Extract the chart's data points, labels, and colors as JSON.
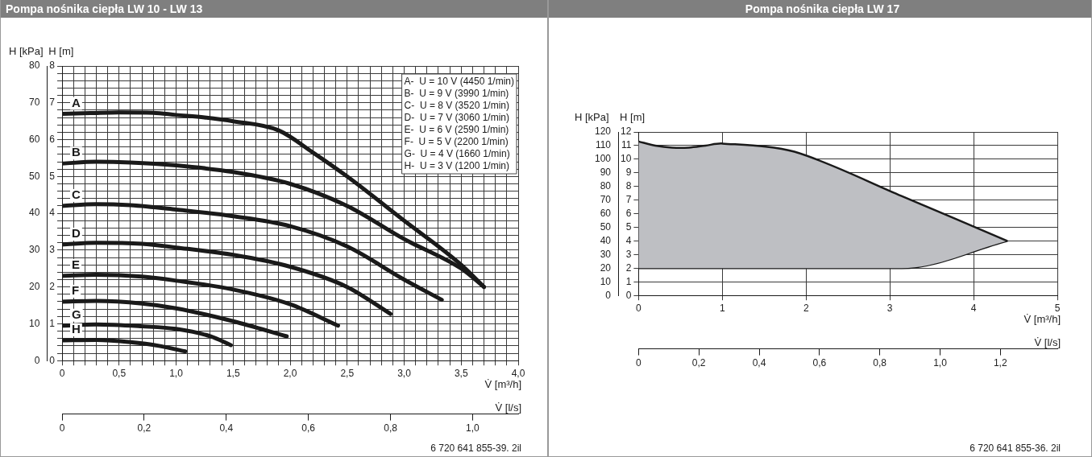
{
  "chart_data": [
    {
      "type": "line",
      "title": "Pompa nośnika ciepła LW 10 - LW 13",
      "xlabel": "V̇ [m³/h]",
      "x2label": "V̇ [l/s]",
      "ylabel": "H [m]",
      "y2label": "H [kPa]",
      "xlim": [
        0,
        4
      ],
      "xticks": [
        0,
        {
          "value": 0.1,
          "label": null
        },
        {
          "value": 0.2,
          "label": null
        },
        {
          "value": 0.3,
          "label": null
        },
        {
          "value": 0.4,
          "label": null
        },
        {
          "value": 0.5,
          "label": "0,5"
        },
        {
          "value": 0.6,
          "label": null
        },
        {
          "value": 0.7,
          "label": null
        },
        {
          "value": 0.8,
          "label": null
        },
        {
          "value": 0.9,
          "label": null
        },
        {
          "value": 1,
          "label": "1,0"
        },
        {
          "value": 1.1,
          "label": null
        },
        {
          "value": 1.2,
          "label": null
        },
        {
          "value": 1.3,
          "label": null
        },
        {
          "value": 1.4,
          "label": null
        },
        {
          "value": 1.5,
          "label": "1,5"
        },
        {
          "value": 1.6,
          "label": null
        },
        {
          "value": 1.7,
          "label": null
        },
        {
          "value": 1.8,
          "label": null
        },
        {
          "value": 1.9,
          "label": null
        },
        {
          "value": 2,
          "label": "2,0"
        },
        {
          "value": 2.1,
          "label": null
        },
        {
          "value": 2.2,
          "label": null
        },
        {
          "value": 2.3,
          "label": null
        },
        {
          "value": 2.4,
          "label": null
        },
        {
          "value": 2.5,
          "label": "2,5"
        },
        {
          "value": 2.6,
          "label": null
        },
        {
          "value": 2.7,
          "label": null
        },
        {
          "value": 2.8,
          "label": null
        },
        {
          "value": 2.9,
          "label": null
        },
        {
          "value": 3,
          "label": "3,0"
        },
        {
          "value": 3.1,
          "label": null
        },
        {
          "value": 3.2,
          "label": null
        },
        {
          "value": 3.3,
          "label": null
        },
        {
          "value": 3.4,
          "label": null
        },
        {
          "value": 3.5,
          "label": "3,5"
        },
        {
          "value": 3.6,
          "label": null
        },
        {
          "value": 3.7,
          "label": null
        },
        {
          "value": 3.8,
          "label": null
        },
        {
          "value": 3.9,
          "label": null
        },
        {
          "value": 4,
          "label": "4,0"
        }
      ],
      "ylim": [
        0,
        8
      ],
      "yticks": [
        0,
        {
          "value": 0.2,
          "label": null
        },
        {
          "value": 0.4,
          "label": null
        },
        {
          "value": 0.6,
          "label": null
        },
        {
          "value": 0.8,
          "label": null
        },
        1,
        {
          "value": 1.2,
          "label": null
        },
        {
          "value": 1.4,
          "label": null
        },
        {
          "value": 1.6,
          "label": null
        },
        {
          "value": 1.8,
          "label": null
        },
        2,
        {
          "value": 2.2,
          "label": null
        },
        {
          "value": 2.4,
          "label": null
        },
        {
          "value": 2.6,
          "label": null
        },
        {
          "value": 2.8,
          "label": null
        },
        3,
        {
          "value": 3.2,
          "label": null
        },
        {
          "value": 3.4,
          "label": null
        },
        {
          "value": 3.6,
          "label": null
        },
        {
          "value": 3.8,
          "label": null
        },
        4,
        {
          "value": 4.2,
          "label": null
        },
        {
          "value": 4.4,
          "label": null
        },
        {
          "value": 4.6,
          "label": null
        },
        {
          "value": 4.8,
          "label": null
        },
        5,
        {
          "value": 5.2,
          "label": null
        },
        {
          "value": 5.4,
          "label": null
        },
        {
          "value": 5.6,
          "label": null
        },
        {
          "value": 5.8,
          "label": null
        },
        6,
        {
          "value": 6.2,
          "label": null
        },
        {
          "value": 6.4,
          "label": null
        },
        {
          "value": 6.6,
          "label": null
        },
        {
          "value": 6.8,
          "label": null
        },
        7,
        {
          "value": 7.2,
          "label": null
        },
        {
          "value": 7.4,
          "label": null
        },
        {
          "value": 7.6,
          "label": null
        },
        {
          "value": 7.8,
          "label": null
        },
        8
      ],
      "y2lim": [
        0,
        80
      ],
      "y2ticks": [
        0,
        10,
        20,
        30,
        40,
        50,
        60,
        70,
        80
      ],
      "x2lim": [
        0,
        1.111
      ],
      "x2ticks": [
        0,
        {
          "value": 0.2,
          "label": "0,2"
        },
        {
          "value": 0.4,
          "label": "0,4"
        },
        {
          "value": 0.6,
          "label": "0,6"
        },
        {
          "value": 0.8,
          "label": "0,8"
        },
        {
          "value": 1,
          "label": "1,0"
        }
      ],
      "grid": true,
      "series": [
        {
          "name": "A",
          "color": "#1a1a1a",
          "x": [
            0,
            0.25,
            0.5,
            0.8,
            1.0,
            1.25,
            1.5,
            1.9,
            2.2,
            2.5,
            3.0,
            3.5,
            3.7
          ],
          "values": [
            6.7,
            6.72,
            6.74,
            6.73,
            6.67,
            6.6,
            6.5,
            6.25,
            5.65,
            5.0,
            3.8,
            2.6,
            2.0
          ]
        },
        {
          "name": "B",
          "color": "#1a1a1a",
          "x": [
            0,
            0.3,
            0.6,
            1.0,
            1.5,
            2.0,
            2.5,
            3.0,
            3.5,
            3.7
          ],
          "values": [
            5.35,
            5.4,
            5.38,
            5.3,
            5.12,
            4.8,
            4.2,
            3.3,
            2.5,
            2.0
          ]
        },
        {
          "name": "C",
          "color": "#1a1a1a",
          "x": [
            0,
            0.3,
            0.6,
            1.0,
            1.5,
            2.0,
            2.5,
            3.0,
            3.33
          ],
          "values": [
            4.2,
            4.25,
            4.22,
            4.1,
            3.92,
            3.65,
            3.1,
            2.2,
            1.65
          ]
        },
        {
          "name": "D",
          "color": "#1a1a1a",
          "x": [
            0,
            0.3,
            0.7,
            1.0,
            1.5,
            2.0,
            2.5,
            2.88
          ],
          "values": [
            3.15,
            3.2,
            3.17,
            3.07,
            2.87,
            2.55,
            2.0,
            1.27
          ]
        },
        {
          "name": "E",
          "color": "#1a1a1a",
          "x": [
            0,
            0.3,
            0.7,
            1.0,
            1.5,
            2.0,
            2.42
          ],
          "values": [
            2.3,
            2.33,
            2.28,
            2.17,
            1.93,
            1.53,
            0.95
          ]
        },
        {
          "name": "F",
          "color": "#1a1a1a",
          "x": [
            0,
            0.3,
            0.7,
            1.0,
            1.5,
            1.97
          ],
          "values": [
            1.6,
            1.62,
            1.55,
            1.42,
            1.07,
            0.66
          ]
        },
        {
          "name": "G",
          "color": "#1a1a1a",
          "x": [
            0,
            0.3,
            0.7,
            1.0,
            1.3,
            1.48
          ],
          "values": [
            0.95,
            0.98,
            0.93,
            0.86,
            0.66,
            0.42
          ]
        },
        {
          "name": "H",
          "color": "#1a1a1a",
          "x": [
            0,
            0.3,
            0.6,
            0.85,
            1.08
          ],
          "values": [
            0.55,
            0.56,
            0.5,
            0.4,
            0.25
          ]
        }
      ],
      "annotations": [
        "A-  U = 10 V (4450 1/min)",
        "B-  U = 9 V (3990 1/min)",
        "C-  U = 8 V (3520 1/min)",
        "D-  U = 7 V (3060 1/min)",
        "E-  U = 6 V (2590 1/min)",
        "F-  U = 5 V (2200 1/min)",
        "G-  U = 4 V (1660 1/min)",
        "H-  U = 3 V (1200 1/min)",
        "6 720 641 855-39. 2il"
      ]
    },
    {
      "type": "area",
      "title": "Pompa nośnika ciepła LW 17",
      "xlabel": "V̇ [m³/h]",
      "x2label": "V̇ [l/s]",
      "ylabel": "H [m]",
      "y2label": "H [kPa]",
      "xlim": [
        0,
        5
      ],
      "xticks": [
        0,
        1,
        2,
        3,
        4,
        5
      ],
      "ylim": [
        0,
        12
      ],
      "yticks": [
        0,
        1,
        2,
        3,
        4,
        5,
        6,
        7,
        8,
        9,
        10,
        11,
        12
      ],
      "y2lim": [
        0,
        120
      ],
      "y2ticks": [
        0,
        10,
        20,
        30,
        40,
        50,
        60,
        70,
        80,
        90,
        100,
        110,
        120
      ],
      "x2lim": [
        0,
        1.389
      ],
      "x2ticks": [
        0,
        {
          "value": 0.2,
          "label": "0,2"
        },
        {
          "value": 0.4,
          "label": "0,4"
        },
        {
          "value": 0.6,
          "label": "0,6"
        },
        {
          "value": 0.8,
          "label": "0,8"
        },
        {
          "value": 1,
          "label": "1,0"
        },
        {
          "value": 1.2,
          "label": "1,2"
        }
      ],
      "grid": true,
      "series": [
        {
          "color": "#bebfc3",
          "x": [
            0,
            0.2,
            0.4,
            0.6,
            0.8,
            1.0,
            1.86,
            3.14,
            4.4
          ],
          "values": [
            11.3,
            11.0,
            10.85,
            10.85,
            11.0,
            11.15,
            10.55,
            7.3,
            4.0
          ]
        },
        {
          "type": "line",
          "color": "#1a1a1a",
          "x": [
            0,
            3.14,
            4.4
          ],
          "values": [
            2,
            2,
            4.0
          ]
        }
      ],
      "annotations": [
        "6 720 641 855-36. 2il"
      ]
    }
  ]
}
